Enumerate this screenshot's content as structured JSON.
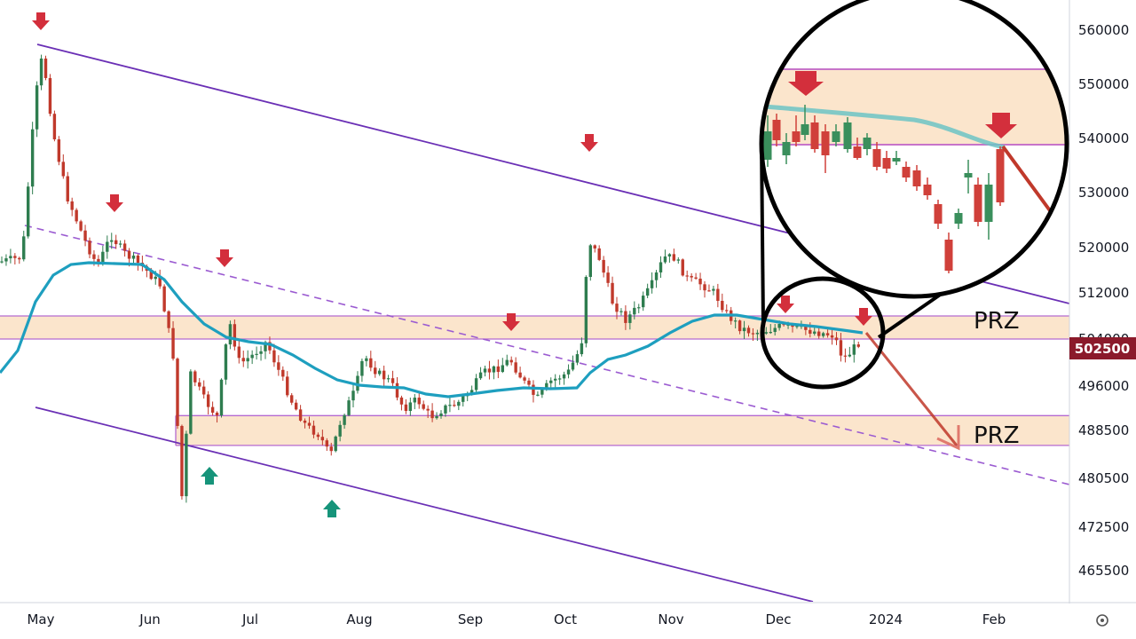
{
  "chart_data": {
    "type": "candlestick",
    "xlabels": [
      "May",
      "Jun",
      "Jul",
      "Aug",
      "Sep",
      "Oct",
      "Nov",
      "Dec",
      "2024",
      "Feb"
    ],
    "yticks": [
      560000,
      550000,
      540000,
      530000,
      520000,
      512000,
      504000,
      496000,
      488500,
      480500,
      472500,
      465500
    ],
    "current_price": "502500",
    "zones": [
      {
        "label": "PRZ",
        "low": 504000,
        "high": 508000
      },
      {
        "label": "PRZ",
        "low": 486000,
        "high": 491000
      }
    ],
    "series": [
      {
        "name": "moving-average",
        "color": "#1e9fbf"
      },
      {
        "name": "candles",
        "up_color": "#2e7d4f",
        "down_color": "#c0392b"
      }
    ],
    "annotations": [
      "down-arrow",
      "up-arrow",
      "channel",
      "zoom-circle"
    ]
  },
  "colors": {
    "up": "#2e7d4f",
    "down": "#c0392b",
    "ma": "#1e9fbf",
    "channel": "#6a2fb5",
    "zone": "#fbe5cc",
    "arrow_down": "#d32f3c",
    "arrow_up": "#16947a",
    "price_tag": "#8b1a2b"
  },
  "icons": {
    "settings": "gear-icon"
  }
}
